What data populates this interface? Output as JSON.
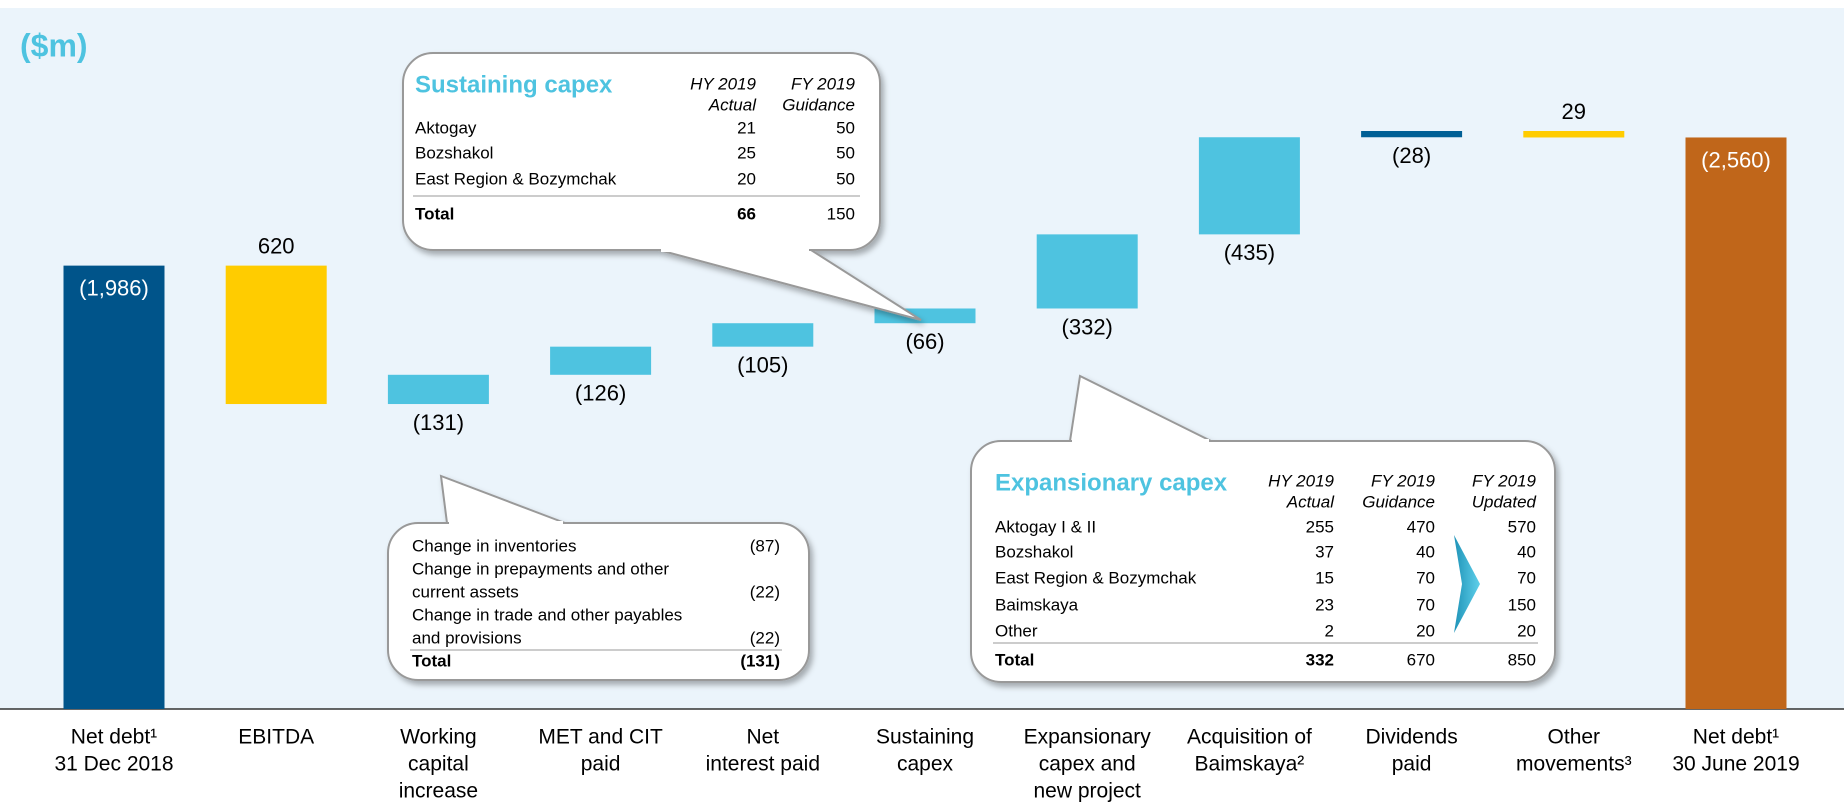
{
  "chart_data": {
    "type": "waterfall",
    "unit": "($m)",
    "categories": [
      [
        "Net debt¹",
        "31 Dec 2018"
      ],
      [
        "EBITDA"
      ],
      [
        "Working",
        "capital",
        "increase"
      ],
      [
        "MET and CIT",
        "paid"
      ],
      [
        "Net",
        "interest paid"
      ],
      [
        "Sustaining",
        "capex"
      ],
      [
        "Expansionary",
        "capex and",
        "new project"
      ],
      [
        "Acquisition of",
        "Baimskaya²"
      ],
      [
        "Dividends",
        "paid"
      ],
      [
        "Other",
        "movements³"
      ],
      [
        "Net debt¹",
        "30 June 2019"
      ]
    ],
    "values": [
      -1986,
      620,
      -131,
      -126,
      -105,
      -66,
      -332,
      -435,
      -28,
      29,
      -2560
    ],
    "value_labels": [
      "(1,986)",
      "620",
      "(131)",
      "(126)",
      "(105)",
      "(66)",
      "(332)",
      "(435)",
      "(28)",
      "29",
      "(2,560)"
    ],
    "colors": [
      "#00548a",
      "#ffcc00",
      "#4ec3e0",
      "#4ec3e0",
      "#4ec3e0",
      "#4ec3e0",
      "#4ec3e0",
      "#4ec3e0",
      "#005f95",
      "#ffcc00",
      "#c0661a"
    ]
  },
  "callouts": [
    {
      "title": "Sustaining capex",
      "headers": [
        [
          "HY 2019",
          "Actual"
        ],
        [
          "FY 2019",
          "Guidance"
        ]
      ],
      "rows": [
        [
          "Aktogay",
          "21",
          "50"
        ],
        [
          "Bozshakol",
          "25",
          "50"
        ],
        [
          "East Region & Bozymchak",
          "20",
          "50"
        ]
      ],
      "total": [
        "Total",
        "66",
        "150"
      ]
    },
    {
      "rows": [
        [
          "Change in inventories",
          "(87)"
        ],
        [
          "Change in prepayments and other",
          "current assets",
          "(22)"
        ],
        [
          "Change in trade and other payables",
          "and provisions",
          "(22)"
        ]
      ],
      "total": [
        "Total",
        "(131)"
      ]
    },
    {
      "title": "Expansionary capex",
      "headers": [
        [
          "HY 2019",
          "Actual"
        ],
        [
          "FY 2019",
          "Guidance"
        ],
        [
          "FY 2019",
          "Updated"
        ]
      ],
      "rows": [
        [
          "Aktogay I & II",
          "255",
          "470",
          "570"
        ],
        [
          "Bozshakol",
          "37",
          "40",
          "40"
        ],
        [
          "East Region & Bozymchak",
          "15",
          "70",
          "70"
        ],
        [
          "Baimskaya",
          "23",
          "70",
          "150"
        ],
        [
          "Other",
          "2",
          "20",
          "20"
        ]
      ],
      "total": [
        "Total",
        "332",
        "670",
        "850"
      ]
    }
  ]
}
